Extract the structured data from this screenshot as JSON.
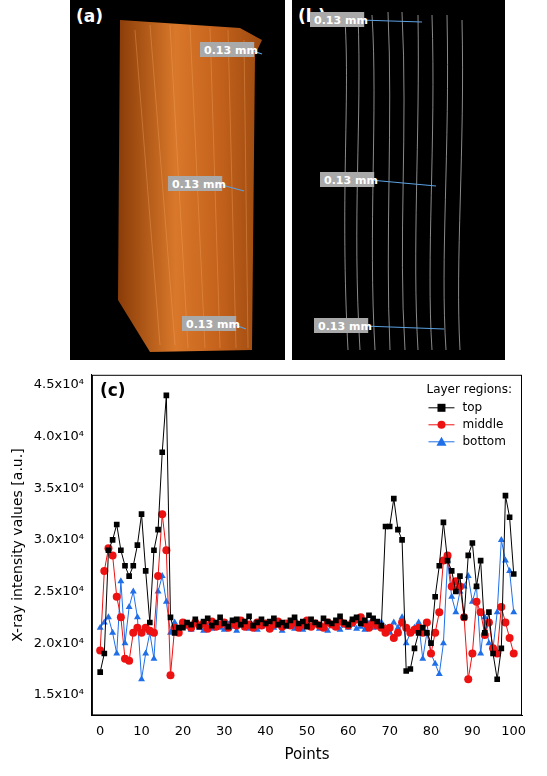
{
  "images": [
    {
      "label": "(a)",
      "annotations": [
        "0.13 mm",
        "0.13 mm",
        "0.13 mm"
      ]
    },
    {
      "label": "(b)",
      "annotations": [
        "0.13 mm",
        "0.13 mm",
        "0.13 mm"
      ]
    }
  ],
  "chart_data": {
    "type": "line",
    "panel_label": "(c)",
    "x_label": "Points",
    "y_label": "X-ray intensity values [a.u.]",
    "legend": "top right",
    "legend_title": "Layer regions:",
    "grid": false,
    "xlim": [
      -2,
      102
    ],
    "xticks": [
      0,
      10,
      20,
      30,
      40,
      50,
      60,
      70,
      80,
      90,
      100
    ],
    "ylim": [
      13000,
      46000
    ],
    "yticks": [
      {
        "value": 15000,
        "label": "1.5x10⁴"
      },
      {
        "value": 20000,
        "label": "2.0x10⁴"
      },
      {
        "value": 25000,
        "label": "2.5x10⁴"
      },
      {
        "value": 30000,
        "label": "3.0x10⁴"
      },
      {
        "value": 35000,
        "label": "3.5x10⁴"
      },
      {
        "value": 40000,
        "label": "4.0x10⁴"
      },
      {
        "value": 45000,
        "label": "4.5x10⁴"
      }
    ],
    "x": [
      0,
      1,
      2,
      3,
      4,
      5,
      6,
      7,
      8,
      9,
      10,
      11,
      12,
      13,
      14,
      15,
      16,
      17,
      18,
      19,
      20,
      21,
      22,
      23,
      24,
      25,
      26,
      27,
      28,
      29,
      30,
      31,
      32,
      33,
      34,
      35,
      36,
      37,
      38,
      39,
      40,
      41,
      42,
      43,
      44,
      45,
      46,
      47,
      48,
      49,
      50,
      51,
      52,
      53,
      54,
      55,
      56,
      57,
      58,
      59,
      60,
      61,
      62,
      63,
      64,
      65,
      66,
      67,
      68,
      69,
      70,
      71,
      72,
      73,
      74,
      75,
      76,
      77,
      78,
      79,
      80,
      81,
      82,
      83,
      84,
      85,
      86,
      87,
      88,
      89,
      90,
      91,
      92,
      93,
      94,
      95,
      96,
      97,
      98,
      99,
      100
    ],
    "series": [
      {
        "name": "top",
        "color": "#000000",
        "marker": "square",
        "line_style": "solid",
        "values": [
          17200,
          19000,
          29000,
          30000,
          31500,
          29000,
          27500,
          26500,
          27500,
          29500,
          32500,
          27000,
          22000,
          29000,
          31000,
          38500,
          44000,
          22500,
          21000,
          21500,
          21500,
          22000,
          21800,
          22300,
          21600,
          22100,
          22400,
          21700,
          22000,
          22500,
          21900,
          21600,
          22200,
          22300,
          21800,
          22100,
          22600,
          21700,
          22000,
          22300,
          21900,
          22100,
          22400,
          21800,
          22000,
          21700,
          22200,
          22500,
          21900,
          22100,
          21600,
          22300,
          22000,
          21800,
          22400,
          22100,
          21900,
          22200,
          22600,
          22000,
          21800,
          22300,
          22500,
          21900,
          22200,
          22700,
          22400,
          22100,
          21700,
          31300,
          31300,
          34000,
          31000,
          30000,
          17300,
          17500,
          19500,
          21000,
          21500,
          21000,
          20000,
          24500,
          27500,
          31700,
          28000,
          27000,
          25000,
          26500,
          22500,
          28500,
          29700,
          25500,
          28000,
          21000,
          23000,
          19000,
          16500,
          19500,
          34300,
          32200,
          26700
        ]
      },
      {
        "name": "middle",
        "color": "#ee1111",
        "marker": "circle",
        "line_style": "solid",
        "values": [
          19300,
          27000,
          29200,
          28500,
          24500,
          22500,
          18500,
          18300,
          21000,
          21500,
          21000,
          21500,
          21200,
          21000,
          26500,
          32500,
          29000,
          16900,
          21500,
          21000,
          22000,
          21800,
          21500,
          22000,
          21700,
          21900,
          21400,
          22100,
          21600,
          21800,
          22000,
          21500,
          21900,
          21700,
          22200,
          21600,
          21800,
          21500,
          22000,
          21700,
          21900,
          21400,
          21800,
          22100,
          21600,
          21900,
          21700,
          22000,
          21500,
          21800,
          22200,
          21600,
          21900,
          21700,
          21500,
          22000,
          21800,
          21600,
          22100,
          21900,
          21700,
          22000,
          22300,
          22500,
          21900,
          21500,
          22000,
          21700,
          21500,
          21000,
          21500,
          20500,
          21000,
          22000,
          21500,
          21000,
          21300,
          21500,
          21000,
          22000,
          19000,
          21000,
          23000,
          28000,
          28500,
          25500,
          26000,
          25500,
          22500,
          16500,
          19000,
          24000,
          23000,
          20800,
          22000,
          19500,
          19000,
          23500,
          22000,
          20500,
          19000
        ]
      },
      {
        "name": "bottom",
        "color": "#1f6fe8",
        "marker": "triangle",
        "line_style": "solid",
        "values": [
          21500,
          22000,
          22500,
          21000,
          19000,
          26000,
          20000,
          23500,
          25000,
          22500,
          16500,
          19000,
          21000,
          18500,
          25000,
          26500,
          24000,
          21000,
          22000,
          21000,
          21800,
          21600,
          21300,
          21800,
          21500,
          21200,
          21700,
          21400,
          21900,
          21500,
          21300,
          21800,
          21600,
          21200,
          21700,
          21500,
          21400,
          21800,
          21300,
          21600,
          21900,
          21400,
          21500,
          21700,
          21200,
          21600,
          21800,
          21400,
          21500,
          21300,
          21700,
          21600,
          21900,
          21400,
          21600,
          21200,
          21800,
          21500,
          21300,
          21700,
          21500,
          21800,
          21400,
          21600,
          21300,
          21900,
          21500,
          21700,
          22000,
          21500,
          21000,
          22000,
          21500,
          22500,
          20000,
          21000,
          21500,
          22000,
          18500,
          21000,
          19000,
          18000,
          17000,
          20000,
          28000,
          24500,
          23000,
          25000,
          25500,
          26500,
          24000,
          25500,
          19000,
          22500,
          20000,
          19500,
          23000,
          30000,
          28000,
          27000,
          23000
        ]
      }
    ]
  }
}
